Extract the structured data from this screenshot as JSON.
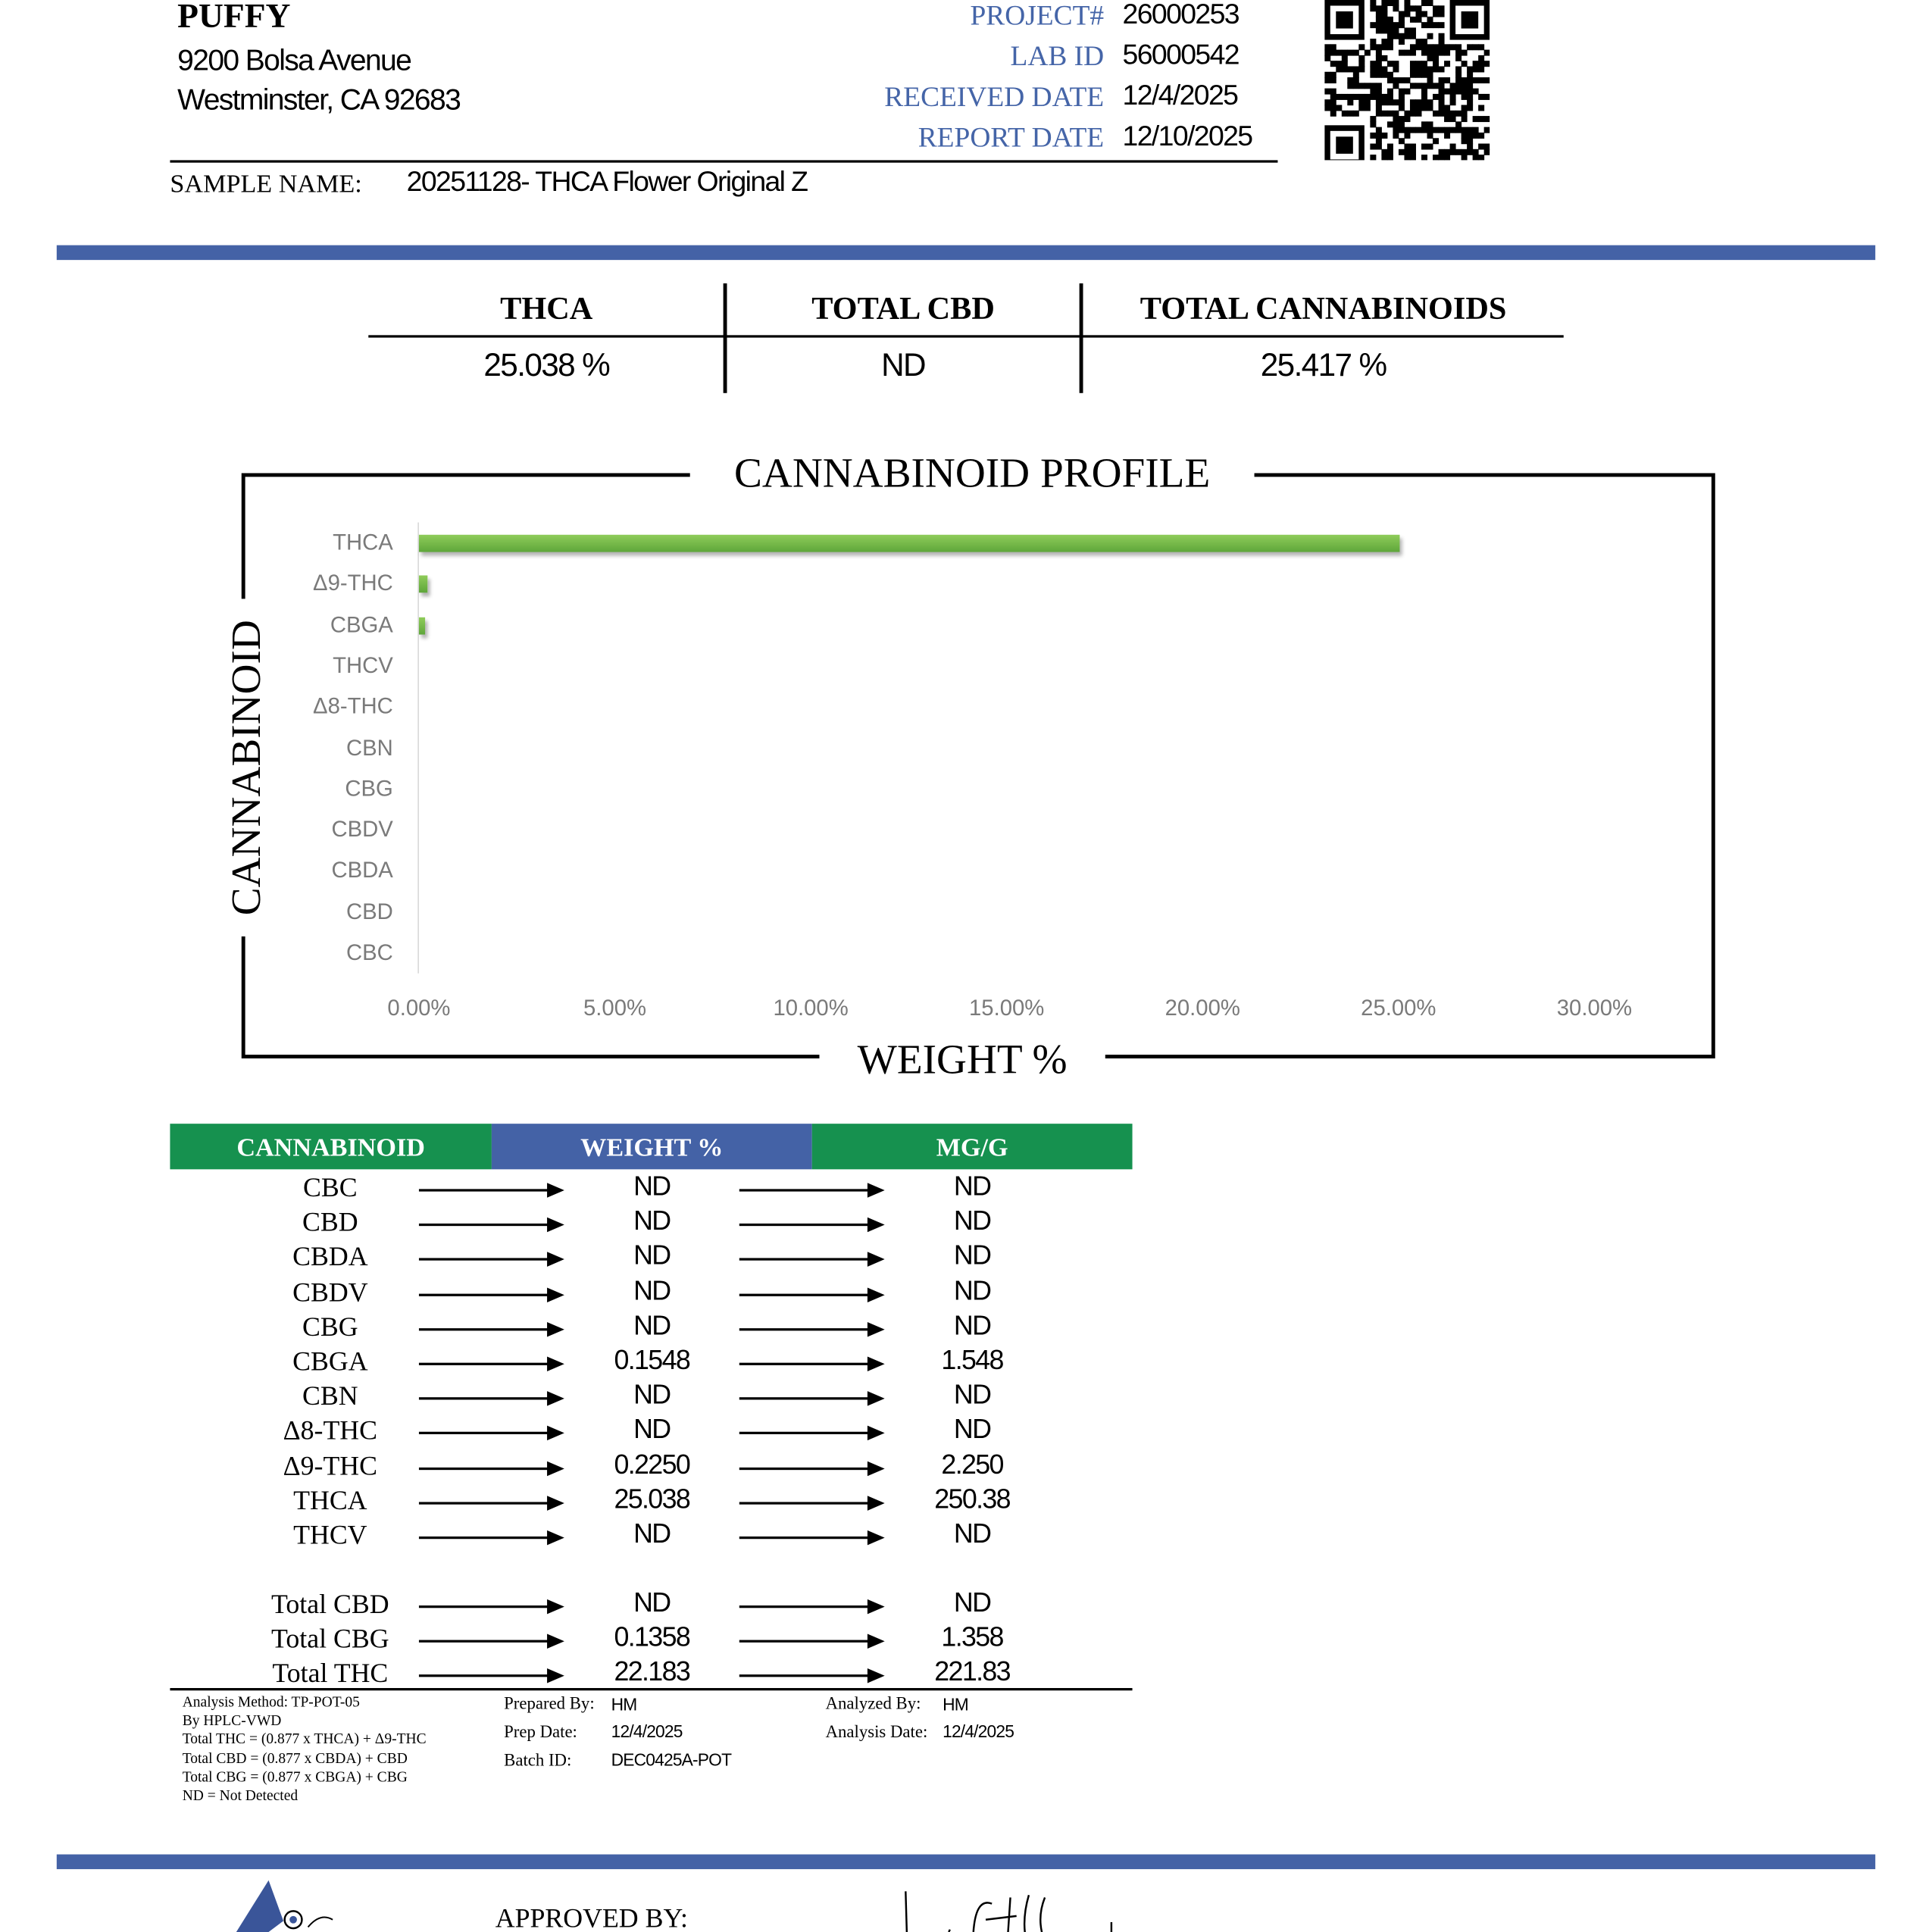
{
  "client": {
    "name": "PUFFY",
    "address1": "9200 Bolsa Avenue",
    "address2": "Westminster, CA 92683"
  },
  "meta": [
    {
      "label": "PROJECT#",
      "value": "26000253"
    },
    {
      "label": "LAB ID",
      "value": "56000542"
    },
    {
      "label": "RECEIVED DATE",
      "value": "12/4/2025"
    },
    {
      "label": "REPORT DATE",
      "value": "12/10/2025"
    }
  ],
  "sample": {
    "label": "SAMPLE NAME:",
    "value": "20251128- THCA Flower Original Z"
  },
  "summary": [
    {
      "label": "THCA",
      "value": "25.038 %"
    },
    {
      "label": "TOTAL CBD",
      "value": "ND"
    },
    {
      "label": "TOTAL CANNABINOIDS",
      "value": "25.417 %"
    }
  ],
  "colors": {
    "band": "#4462a6",
    "label_blue": "#4565a8",
    "header_green": "#16914f",
    "header_blue": "#4462a6",
    "bar_green": "#6db545"
  },
  "chart_data": {
    "type": "bar",
    "orientation": "horizontal",
    "title": "CANNABINOID PROFILE",
    "xlabel": "WEIGHT %",
    "ylabel": "CANNABINOID",
    "categories": [
      "THCA",
      "Δ9-THC",
      "CBGA",
      "THCV",
      "Δ8-THC",
      "CBN",
      "CBG",
      "CBDV",
      "CBDA",
      "CBD",
      "CBC"
    ],
    "values": [
      25.038,
      0.225,
      0.1548,
      0,
      0,
      0,
      0,
      0,
      0,
      0,
      0
    ],
    "xlim": [
      0,
      30
    ],
    "xticks": [
      "0.00%",
      "5.00%",
      "10.00%",
      "15.00%",
      "20.00%",
      "25.00%",
      "30.00%"
    ],
    "grid": false
  },
  "table": {
    "headers": [
      "CANNABINOID",
      "WEIGHT %",
      "MG/G"
    ],
    "rows": [
      [
        "CBC",
        "ND",
        "ND"
      ],
      [
        "CBD",
        "ND",
        "ND"
      ],
      [
        "CBDA",
        "ND",
        "ND"
      ],
      [
        "CBDV",
        "ND",
        "ND"
      ],
      [
        "CBG",
        "ND",
        "ND"
      ],
      [
        "CBGA",
        "0.1548",
        "1.548"
      ],
      [
        "CBN",
        "ND",
        "ND"
      ],
      [
        "Δ8-THC",
        "ND",
        "ND"
      ],
      [
        "Δ9-THC",
        "0.2250",
        "2.250"
      ],
      [
        "THCA",
        "25.038",
        "250.38"
      ],
      [
        "THCV",
        "ND",
        "ND"
      ]
    ],
    "totals": [
      [
        "Total CBD",
        "ND",
        "ND"
      ],
      [
        "Total CBG",
        "0.1358",
        "1.358"
      ],
      [
        "Total THC",
        "22.183",
        "221.83"
      ]
    ]
  },
  "notes": [
    "Analysis Method: TP-POT-05",
    "By HPLC-VWD",
    "Total THC = (0.877 x  THCA) + Δ9-THC",
    "Total CBD = (0.877 x  CBDA) + CBD",
    "Total CBG = (0.877 x  CBGA) + CBG",
    "ND = Not Detected"
  ],
  "prep": {
    "prepared_by_label": "Prepared By:",
    "prepared_by": "HM",
    "prep_date_label": "Prep Date:",
    "prep_date": "12/4/2025",
    "batch_label": "Batch ID:",
    "batch": "DEC0425A-POT"
  },
  "analysis": {
    "analyzed_by_label": "Analyzed By:",
    "analyzed_by": "HM",
    "date_label": "Analysis Date:",
    "date": "12/4/2025"
  },
  "footer": {
    "approved_label": "APPROVED BY:"
  }
}
